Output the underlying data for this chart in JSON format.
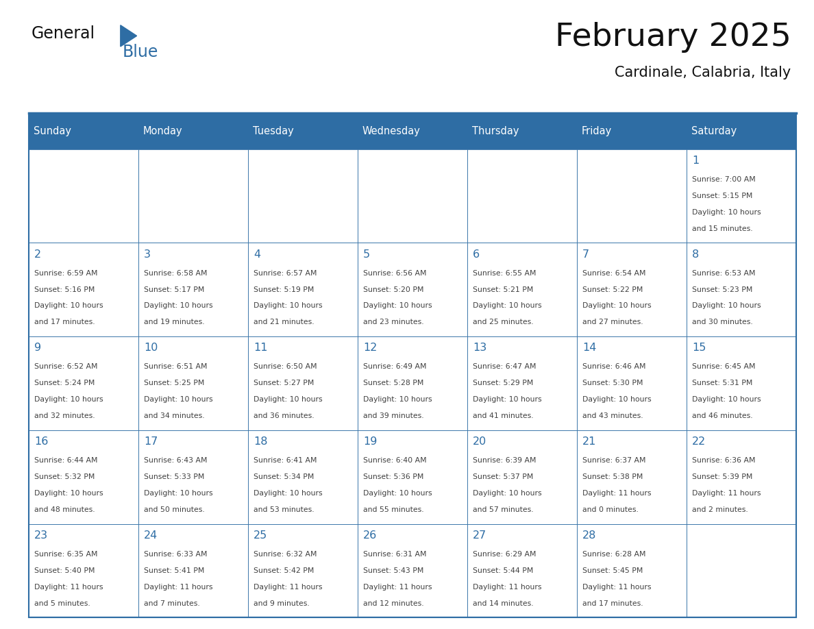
{
  "title": "February 2025",
  "subtitle": "Cardinale, Calabria, Italy",
  "header_bg": "#2E6DA4",
  "header_text_color": "#FFFFFF",
  "cell_bg": "#FFFFFF",
  "day_number_color": "#2E6DA4",
  "cell_text_color": "#404040",
  "border_color": "#2E6DA4",
  "days_of_week": [
    "Sunday",
    "Monday",
    "Tuesday",
    "Wednesday",
    "Thursday",
    "Friday",
    "Saturday"
  ],
  "calendar": [
    [
      null,
      null,
      null,
      null,
      null,
      null,
      {
        "day": 1,
        "sunrise": "7:00 AM",
        "sunset": "5:15 PM",
        "daylight": "10 hours",
        "daylight2": "and 15 minutes."
      }
    ],
    [
      {
        "day": 2,
        "sunrise": "6:59 AM",
        "sunset": "5:16 PM",
        "daylight": "10 hours",
        "daylight2": "and 17 minutes."
      },
      {
        "day": 3,
        "sunrise": "6:58 AM",
        "sunset": "5:17 PM",
        "daylight": "10 hours",
        "daylight2": "and 19 minutes."
      },
      {
        "day": 4,
        "sunrise": "6:57 AM",
        "sunset": "5:19 PM",
        "daylight": "10 hours",
        "daylight2": "and 21 minutes."
      },
      {
        "day": 5,
        "sunrise": "6:56 AM",
        "sunset": "5:20 PM",
        "daylight": "10 hours",
        "daylight2": "and 23 minutes."
      },
      {
        "day": 6,
        "sunrise": "6:55 AM",
        "sunset": "5:21 PM",
        "daylight": "10 hours",
        "daylight2": "and 25 minutes."
      },
      {
        "day": 7,
        "sunrise": "6:54 AM",
        "sunset": "5:22 PM",
        "daylight": "10 hours",
        "daylight2": "and 27 minutes."
      },
      {
        "day": 8,
        "sunrise": "6:53 AM",
        "sunset": "5:23 PM",
        "daylight": "10 hours",
        "daylight2": "and 30 minutes."
      }
    ],
    [
      {
        "day": 9,
        "sunrise": "6:52 AM",
        "sunset": "5:24 PM",
        "daylight": "10 hours",
        "daylight2": "and 32 minutes."
      },
      {
        "day": 10,
        "sunrise": "6:51 AM",
        "sunset": "5:25 PM",
        "daylight": "10 hours",
        "daylight2": "and 34 minutes."
      },
      {
        "day": 11,
        "sunrise": "6:50 AM",
        "sunset": "5:27 PM",
        "daylight": "10 hours",
        "daylight2": "and 36 minutes."
      },
      {
        "day": 12,
        "sunrise": "6:49 AM",
        "sunset": "5:28 PM",
        "daylight": "10 hours",
        "daylight2": "and 39 minutes."
      },
      {
        "day": 13,
        "sunrise": "6:47 AM",
        "sunset": "5:29 PM",
        "daylight": "10 hours",
        "daylight2": "and 41 minutes."
      },
      {
        "day": 14,
        "sunrise": "6:46 AM",
        "sunset": "5:30 PM",
        "daylight": "10 hours",
        "daylight2": "and 43 minutes."
      },
      {
        "day": 15,
        "sunrise": "6:45 AM",
        "sunset": "5:31 PM",
        "daylight": "10 hours",
        "daylight2": "and 46 minutes."
      }
    ],
    [
      {
        "day": 16,
        "sunrise": "6:44 AM",
        "sunset": "5:32 PM",
        "daylight": "10 hours",
        "daylight2": "and 48 minutes."
      },
      {
        "day": 17,
        "sunrise": "6:43 AM",
        "sunset": "5:33 PM",
        "daylight": "10 hours",
        "daylight2": "and 50 minutes."
      },
      {
        "day": 18,
        "sunrise": "6:41 AM",
        "sunset": "5:34 PM",
        "daylight": "10 hours",
        "daylight2": "and 53 minutes."
      },
      {
        "day": 19,
        "sunrise": "6:40 AM",
        "sunset": "5:36 PM",
        "daylight": "10 hours",
        "daylight2": "and 55 minutes."
      },
      {
        "day": 20,
        "sunrise": "6:39 AM",
        "sunset": "5:37 PM",
        "daylight": "10 hours",
        "daylight2": "and 57 minutes."
      },
      {
        "day": 21,
        "sunrise": "6:37 AM",
        "sunset": "5:38 PM",
        "daylight": "11 hours",
        "daylight2": "and 0 minutes."
      },
      {
        "day": 22,
        "sunrise": "6:36 AM",
        "sunset": "5:39 PM",
        "daylight": "11 hours",
        "daylight2": "and 2 minutes."
      }
    ],
    [
      {
        "day": 23,
        "sunrise": "6:35 AM",
        "sunset": "5:40 PM",
        "daylight": "11 hours",
        "daylight2": "and 5 minutes."
      },
      {
        "day": 24,
        "sunrise": "6:33 AM",
        "sunset": "5:41 PM",
        "daylight": "11 hours",
        "daylight2": "and 7 minutes."
      },
      {
        "day": 25,
        "sunrise": "6:32 AM",
        "sunset": "5:42 PM",
        "daylight": "11 hours",
        "daylight2": "and 9 minutes."
      },
      {
        "day": 26,
        "sunrise": "6:31 AM",
        "sunset": "5:43 PM",
        "daylight": "11 hours",
        "daylight2": "and 12 minutes."
      },
      {
        "day": 27,
        "sunrise": "6:29 AM",
        "sunset": "5:44 PM",
        "daylight": "11 hours",
        "daylight2": "and 14 minutes."
      },
      {
        "day": 28,
        "sunrise": "6:28 AM",
        "sunset": "5:45 PM",
        "daylight": "11 hours",
        "daylight2": "and 17 minutes."
      },
      null
    ]
  ],
  "fig_width": 11.88,
  "fig_height": 9.18,
  "dpi": 100
}
